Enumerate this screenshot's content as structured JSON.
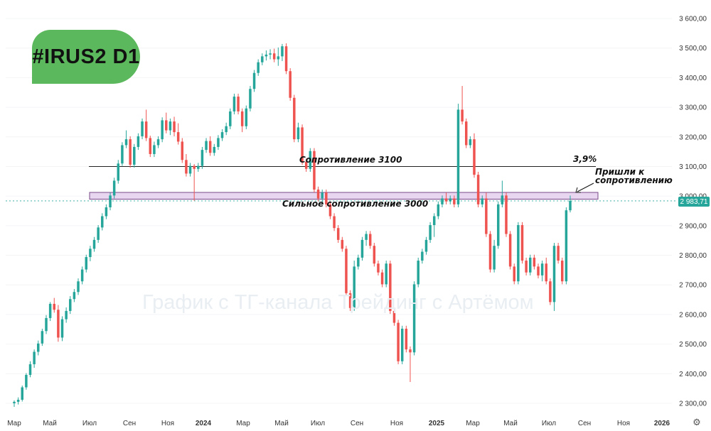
{
  "ticker": "#IRUS2 D1",
  "watermark": "График с ТГ-канала Трейдинг с Артёмом",
  "current_price_label": "2 983,71",
  "settings_icon": "gear-icon",
  "colors": {
    "up": "#26a69a",
    "down": "#ef5350",
    "badge": "#5cb85c",
    "zone_fill": "#e8d5f0",
    "zone_border": "#7a4a8a"
  },
  "chart_data": {
    "type": "candlestick",
    "title": "",
    "ylim": [
      2270,
      3640
    ],
    "yticks": [
      {
        "value": 3600,
        "label": "3 600,00"
      },
      {
        "value": 3500,
        "label": "3 500,00"
      },
      {
        "value": 3400,
        "label": "3 400,00"
      },
      {
        "value": 3300,
        "label": "3 300,00"
      },
      {
        "value": 3200,
        "label": "3 200,00"
      },
      {
        "value": 3100,
        "label": "3 100,00"
      },
      {
        "value": 3000,
        "label": "3 000,00"
      },
      {
        "value": 2900,
        "label": "2 900,00"
      },
      {
        "value": 2800,
        "label": "2 800,00"
      },
      {
        "value": 2700,
        "label": "2 700,00"
      },
      {
        "value": 2600,
        "label": "2 600,00"
      },
      {
        "value": 2500,
        "label": "2 500,00"
      },
      {
        "value": 2400,
        "label": "2 400,00"
      },
      {
        "value": 2300,
        "label": "2 300,00"
      }
    ],
    "xticks": [
      "Мар",
      "Май",
      "Июл",
      "Сен",
      "Ноя",
      "2024",
      "Мар",
      "Май",
      "Июл",
      "Сен",
      "Ноя",
      "2025",
      "Мар",
      "Май",
      "Июл",
      "Сен",
      "Ноя",
      "2026"
    ],
    "xtick_bold": [
      "2024",
      "2025",
      "2026"
    ],
    "levels": [
      {
        "label": "Сопротивление 3100",
        "value": 3100,
        "kind": "line"
      },
      {
        "label": "Сильное сопротивление 3000",
        "value": 3000,
        "kind": "zone",
        "zone": [
          2992,
          3010
        ]
      }
    ],
    "annotations": [
      {
        "text": "3,9%"
      },
      {
        "text": "Пришли к сопротивлению",
        "lines": [
          "Пришли к",
          "сопротивлению"
        ]
      }
    ],
    "candles": [
      [
        2300,
        2310,
        2288,
        2305
      ],
      [
        2305,
        2320,
        2296,
        2312
      ],
      [
        2312,
        2360,
        2306,
        2354
      ],
      [
        2354,
        2402,
        2346,
        2396
      ],
      [
        2396,
        2442,
        2388,
        2432
      ],
      [
        2432,
        2482,
        2420,
        2474
      ],
      [
        2474,
        2512,
        2462,
        2502
      ],
      [
        2502,
        2552,
        2494,
        2544
      ],
      [
        2544,
        2598,
        2534,
        2588
      ],
      [
        2588,
        2642,
        2578,
        2636
      ],
      [
        2636,
        2656,
        2606,
        2616
      ],
      [
        2616,
        2632,
        2508,
        2522
      ],
      [
        2522,
        2594,
        2510,
        2584
      ],
      [
        2584,
        2624,
        2572,
        2612
      ],
      [
        2612,
        2662,
        2602,
        2652
      ],
      [
        2652,
        2686,
        2642,
        2676
      ],
      [
        2676,
        2722,
        2666,
        2712
      ],
      [
        2712,
        2762,
        2702,
        2752
      ],
      [
        2752,
        2802,
        2742,
        2794
      ],
      [
        2794,
        2832,
        2780,
        2822
      ],
      [
        2822,
        2862,
        2812,
        2852
      ],
      [
        2852,
        2902,
        2842,
        2894
      ],
      [
        2894,
        2942,
        2884,
        2932
      ],
      [
        2932,
        2972,
        2922,
        2962
      ],
      [
        2962,
        3012,
        2952,
        3002
      ],
      [
        3002,
        3062,
        2992,
        3052
      ],
      [
        3052,
        3122,
        3042,
        3110
      ],
      [
        3110,
        3182,
        3102,
        3172
      ],
      [
        3172,
        3222,
        3162,
        3192
      ],
      [
        3192,
        3202,
        3096,
        3106
      ],
      [
        3106,
        3176,
        3096,
        3166
      ],
      [
        3166,
        3212,
        3156,
        3202
      ],
      [
        3202,
        3262,
        3192,
        3252
      ],
      [
        3252,
        3292,
        3186,
        3196
      ],
      [
        3196,
        3204,
        3132,
        3142
      ],
      [
        3142,
        3184,
        3132,
        3172
      ],
      [
        3172,
        3202,
        3162,
        3192
      ],
      [
        3192,
        3266,
        3182,
        3256
      ],
      [
        3256,
        3282,
        3212,
        3222
      ],
      [
        3222,
        3262,
        3206,
        3252
      ],
      [
        3252,
        3268,
        3202,
        3216
      ],
      [
        3216,
        3246,
        3174,
        3184
      ],
      [
        3184,
        3196,
        3112,
        3122
      ],
      [
        3122,
        3142,
        3066,
        3076
      ],
      [
        3076,
        3112,
        3066,
        3102
      ],
      [
        3102,
        3108,
        2984,
        3092
      ],
      [
        3092,
        3112,
        3082,
        3102
      ],
      [
        3102,
        3166,
        3092,
        3156
      ],
      [
        3156,
        3196,
        3146,
        3186
      ],
      [
        3186,
        3202,
        3136,
        3146
      ],
      [
        3146,
        3176,
        3136,
        3166
      ],
      [
        3166,
        3206,
        3156,
        3196
      ],
      [
        3196,
        3226,
        3186,
        3216
      ],
      [
        3216,
        3248,
        3206,
        3236
      ],
      [
        3236,
        3296,
        3226,
        3286
      ],
      [
        3286,
        3346,
        3276,
        3336
      ],
      [
        3336,
        3346,
        3276,
        3286
      ],
      [
        3286,
        3296,
        3216,
        3236
      ],
      [
        3236,
        3306,
        3226,
        3296
      ],
      [
        3296,
        3372,
        3286,
        3362
      ],
      [
        3362,
        3426,
        3352,
        3416
      ],
      [
        3416,
        3462,
        3406,
        3452
      ],
      [
        3452,
        3482,
        3442,
        3472
      ],
      [
        3472,
        3492,
        3458,
        3478
      ],
      [
        3478,
        3496,
        3462,
        3482
      ],
      [
        3482,
        3498,
        3452,
        3462
      ],
      [
        3462,
        3502,
        3440,
        3472
      ],
      [
        3472,
        3514,
        3456,
        3506
      ],
      [
        3506,
        3516,
        3412,
        3422
      ],
      [
        3422,
        3432,
        3322,
        3332
      ],
      [
        3332,
        3342,
        3182,
        3192
      ],
      [
        3192,
        3248,
        3182,
        3232
      ],
      [
        3232,
        3242,
        3106,
        3116
      ],
      [
        3116,
        3126,
        3082,
        3092
      ],
      [
        3092,
        3162,
        3082,
        3152
      ],
      [
        3152,
        3162,
        3012,
        3022
      ],
      [
        3022,
        3032,
        2982,
        2992
      ],
      [
        2992,
        3022,
        2972,
        3012
      ],
      [
        3012,
        3022,
        2962,
        2972
      ],
      [
        2972,
        2982,
        2922,
        2932
      ],
      [
        2932,
        2942,
        2882,
        2892
      ],
      [
        2892,
        2902,
        2842,
        2852
      ],
      [
        2852,
        2862,
        2812,
        2822
      ],
      [
        2822,
        2832,
        2662,
        2672
      ],
      [
        2672,
        2682,
        2612,
        2622
      ],
      [
        2622,
        2782,
        2612,
        2762
      ],
      [
        2762,
        2802,
        2752,
        2792
      ],
      [
        2792,
        2862,
        2782,
        2852
      ],
      [
        2852,
        2882,
        2832,
        2872
      ],
      [
        2872,
        2882,
        2822,
        2832
      ],
      [
        2832,
        2842,
        2762,
        2772
      ],
      [
        2772,
        2782,
        2732,
        2742
      ],
      [
        2742,
        2752,
        2692,
        2702
      ],
      [
        2702,
        2782,
        2692,
        2772
      ],
      [
        2772,
        2782,
        2602,
        2612
      ],
      [
        2612,
        2622,
        2562,
        2572
      ],
      [
        2572,
        2582,
        2432,
        2442
      ],
      [
        2442,
        2562,
        2432,
        2552
      ],
      [
        2552,
        2562,
        2472,
        2482
      ],
      [
        2482,
        2492,
        2372,
        2472
      ],
      [
        2472,
        2712,
        2462,
        2702
      ],
      [
        2702,
        2792,
        2692,
        2782
      ],
      [
        2782,
        2822,
        2772,
        2812
      ],
      [
        2812,
        2862,
        2802,
        2852
      ],
      [
        2852,
        2912,
        2842,
        2902
      ],
      [
        2902,
        2942,
        2862,
        2932
      ],
      [
        2932,
        2982,
        2922,
        2972
      ],
      [
        2972,
        3002,
        2962,
        2992
      ],
      [
        2992,
        3012,
        2972,
        2982
      ],
      [
        2982,
        3002,
        2972,
        2992
      ],
      [
        2992,
        3002,
        2962,
        2972
      ],
      [
        2972,
        3312,
        2962,
        3292
      ],
      [
        3292,
        3372,
        3242,
        3252
      ],
      [
        3252,
        3262,
        3162,
        3172
      ],
      [
        3172,
        3202,
        3162,
        3192
      ],
      [
        3192,
        3212,
        3062,
        3072
      ],
      [
        3072,
        3082,
        2962,
        2972
      ],
      [
        2972,
        3002,
        2962,
        2992
      ],
      [
        2992,
        3012,
        2862,
        2872
      ],
      [
        2872,
        2882,
        2742,
        2752
      ],
      [
        2752,
        2852,
        2742,
        2832
      ],
      [
        2832,
        2982,
        2822,
        2972
      ],
      [
        2972,
        3052,
        2962,
        3002
      ],
      [
        3002,
        3012,
        2862,
        2872
      ],
      [
        2872,
        2882,
        2752,
        2762
      ],
      [
        2762,
        2772,
        2702,
        2712
      ],
      [
        2712,
        2912,
        2702,
        2902
      ],
      [
        2902,
        2912,
        2772,
        2782
      ],
      [
        2782,
        2792,
        2732,
        2742
      ],
      [
        2742,
        2802,
        2732,
        2792
      ],
      [
        2792,
        2802,
        2752,
        2762
      ],
      [
        2762,
        2772,
        2722,
        2732
      ],
      [
        2732,
        2782,
        2712,
        2772
      ],
      [
        2772,
        2792,
        2702,
        2712
      ],
      [
        2712,
        2722,
        2632,
        2642
      ],
      [
        2642,
        2842,
        2612,
        2832
      ],
      [
        2832,
        2842,
        2772,
        2782
      ],
      [
        2782,
        2792,
        2702,
        2712
      ],
      [
        2712,
        2962,
        2702,
        2952
      ],
      [
        2952,
        3002,
        2945,
        2984
      ]
    ]
  }
}
